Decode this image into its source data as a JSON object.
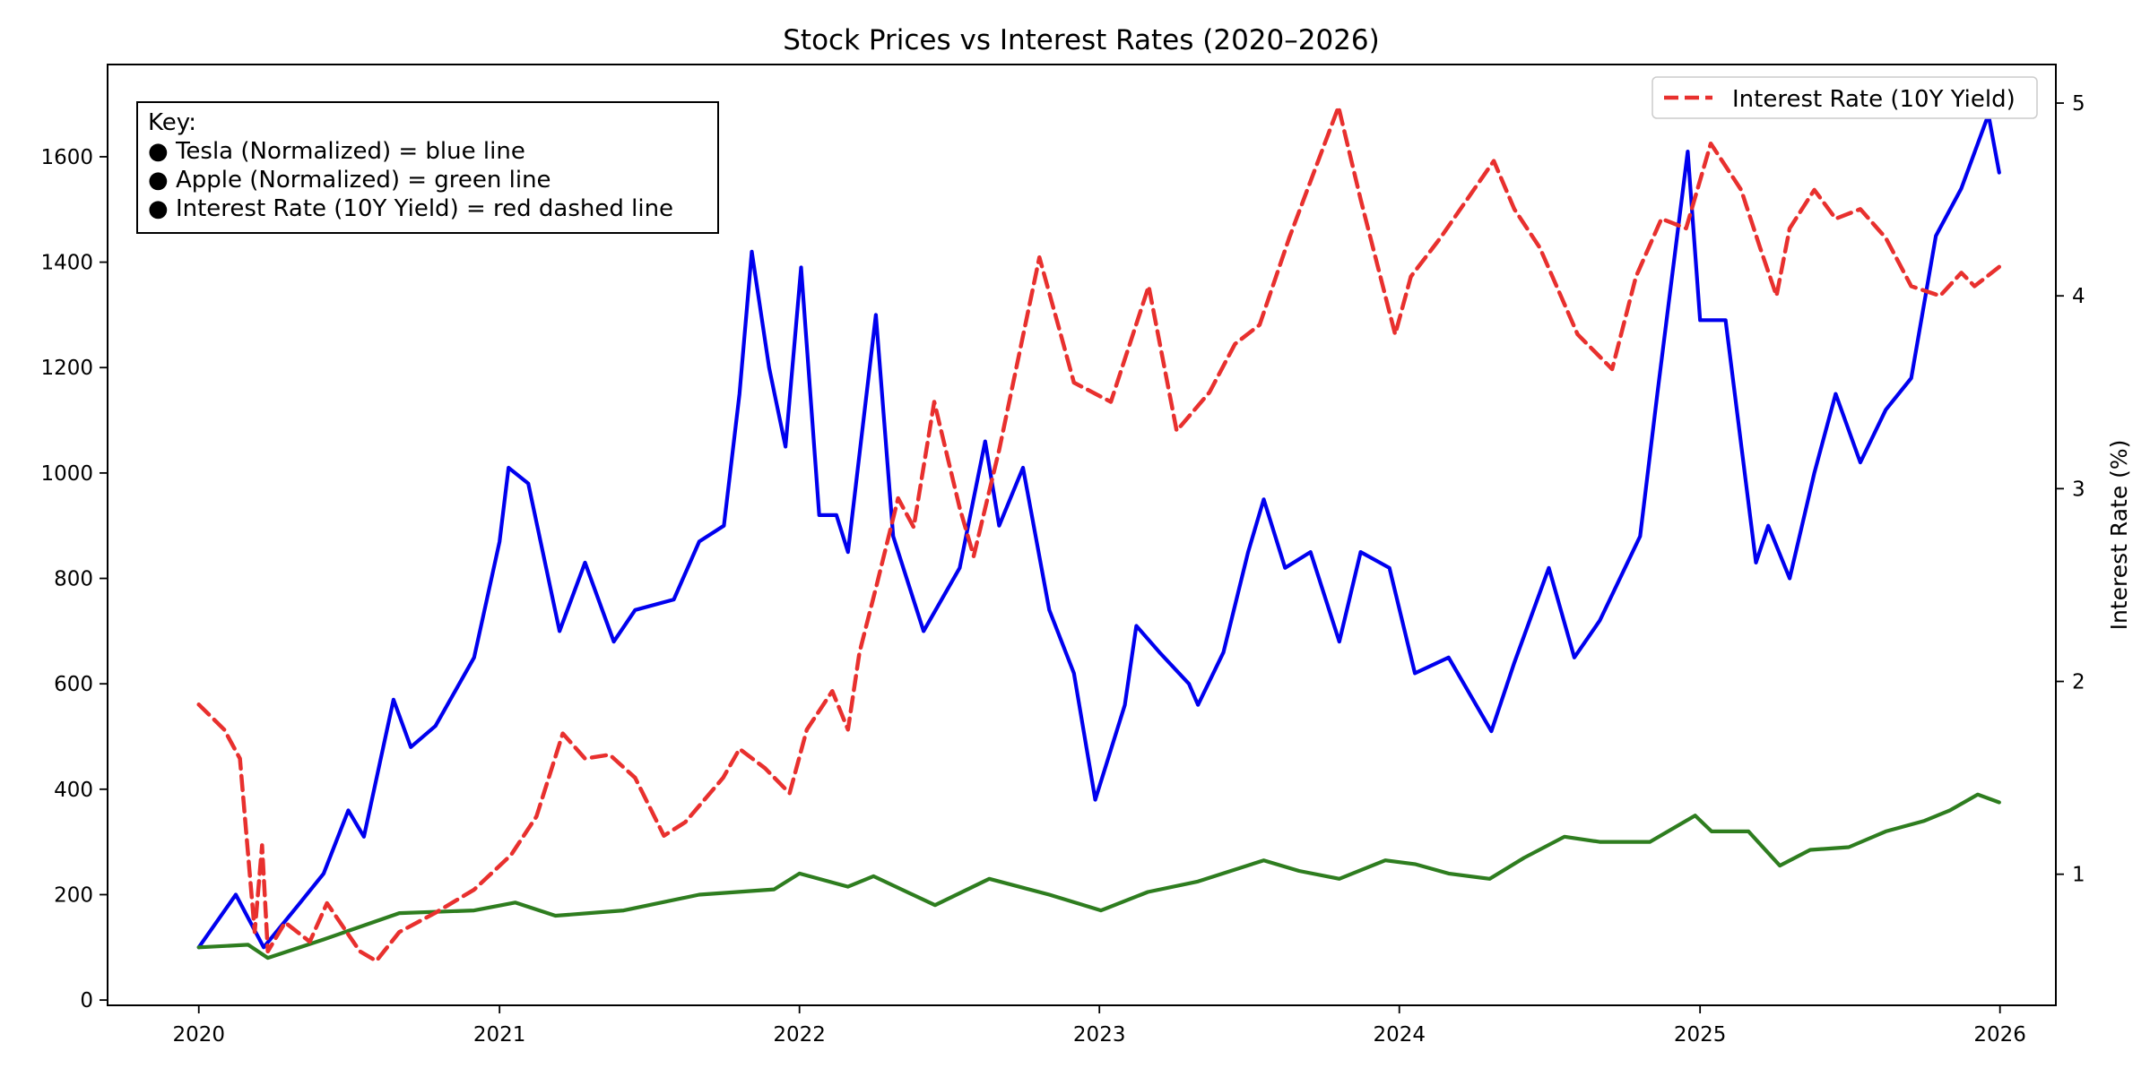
{
  "chart_data": {
    "type": "line",
    "title": "Stock Prices vs Interest Rates (2020–2026)",
    "xlabel": "",
    "ylabel_left": "",
    "ylabel_right": "Interest Rate (%)",
    "x_ticks": [
      "2020",
      "2021",
      "2022",
      "2023",
      "2024",
      "2025",
      "2026"
    ],
    "xlim": [
      "2019-09-12",
      "2026-03-10"
    ],
    "y_left_ticks": [
      0,
      200,
      400,
      600,
      800,
      1000,
      1200,
      1400,
      1600
    ],
    "ylim_left": [
      -10,
      1775
    ],
    "y_right_ticks": [
      1,
      2,
      3,
      4,
      5
    ],
    "ylim_right": [
      0.32,
      5.2
    ],
    "grid": false,
    "key_box": {
      "position": "top-left",
      "lines": [
        "Key:",
        "● Tesla (Normalized) = blue line",
        "● Apple (Normalized) = green line",
        "● Interest Rate (10Y Yield) = red dashed line"
      ]
    },
    "legend": {
      "position": "top-right",
      "entries": [
        {
          "label": "Interest Rate (10Y Yield)",
          "style": "red dashed"
        }
      ]
    },
    "series": [
      {
        "label": "Tesla (Normalized)",
        "axis": "left",
        "color": "#0000ee",
        "style": "solid",
        "points": [
          [
            "2020-01-01",
            100
          ],
          [
            "2020-02-15",
            200
          ],
          [
            "2020-03-20",
            100
          ],
          [
            "2020-05-01",
            180
          ],
          [
            "2020-06-01",
            240
          ],
          [
            "2020-07-01",
            360
          ],
          [
            "2020-07-20",
            310
          ],
          [
            "2020-08-25",
            570
          ],
          [
            "2020-09-15",
            480
          ],
          [
            "2020-10-15",
            520
          ],
          [
            "2020-12-01",
            650
          ],
          [
            "2021-01-01",
            870
          ],
          [
            "2021-01-12",
            1010
          ],
          [
            "2021-02-05",
            980
          ],
          [
            "2021-03-15",
            700
          ],
          [
            "2021-04-15",
            830
          ],
          [
            "2021-05-20",
            680
          ],
          [
            "2021-06-15",
            740
          ],
          [
            "2021-08-01",
            760
          ],
          [
            "2021-09-01",
            870
          ],
          [
            "2021-10-01",
            900
          ],
          [
            "2021-10-20",
            1150
          ],
          [
            "2021-11-04",
            1420
          ],
          [
            "2021-11-25",
            1200
          ],
          [
            "2021-12-15",
            1050
          ],
          [
            "2022-01-03",
            1390
          ],
          [
            "2022-01-25",
            920
          ],
          [
            "2022-02-15",
            920
          ],
          [
            "2022-03-01",
            850
          ],
          [
            "2022-04-04",
            1300
          ],
          [
            "2022-04-25",
            880
          ],
          [
            "2022-06-01",
            700
          ],
          [
            "2022-07-15",
            820
          ],
          [
            "2022-08-15",
            1060
          ],
          [
            "2022-09-01",
            900
          ],
          [
            "2022-09-30",
            1010
          ],
          [
            "2022-11-01",
            740
          ],
          [
            "2022-12-01",
            620
          ],
          [
            "2022-12-27",
            380
          ],
          [
            "2023-02-01",
            560
          ],
          [
            "2023-02-15",
            710
          ],
          [
            "2023-03-15",
            660
          ],
          [
            "2023-04-20",
            600
          ],
          [
            "2023-05-01",
            560
          ],
          [
            "2023-06-01",
            660
          ],
          [
            "2023-07-01",
            850
          ],
          [
            "2023-07-20",
            950
          ],
          [
            "2023-08-15",
            820
          ],
          [
            "2023-09-15",
            850
          ],
          [
            "2023-10-20",
            680
          ],
          [
            "2023-11-15",
            850
          ],
          [
            "2023-12-20",
            820
          ],
          [
            "2024-01-20",
            620
          ],
          [
            "2024-03-01",
            650
          ],
          [
            "2024-04-22",
            510
          ],
          [
            "2024-05-20",
            640
          ],
          [
            "2024-07-01",
            820
          ],
          [
            "2024-08-01",
            650
          ],
          [
            "2024-09-01",
            720
          ],
          [
            "2024-10-20",
            880
          ],
          [
            "2024-11-10",
            1150
          ],
          [
            "2024-12-17",
            1610
          ],
          [
            "2025-01-01",
            1290
          ],
          [
            "2025-02-01",
            1290
          ],
          [
            "2025-03-10",
            830
          ],
          [
            "2025-03-25",
            900
          ],
          [
            "2025-04-20",
            800
          ],
          [
            "2025-05-20",
            1000
          ],
          [
            "2025-06-15",
            1150
          ],
          [
            "2025-07-15",
            1020
          ],
          [
            "2025-08-15",
            1120
          ],
          [
            "2025-09-15",
            1180
          ],
          [
            "2025-10-15",
            1450
          ],
          [
            "2025-11-15",
            1540
          ],
          [
            "2025-12-18",
            1680
          ],
          [
            "2025-12-31",
            1570
          ]
        ]
      },
      {
        "label": "Apple (Normalized)",
        "axis": "left",
        "color": "#2e7d1f",
        "style": "solid",
        "points": [
          [
            "2020-01-01",
            100
          ],
          [
            "2020-03-01",
            105
          ],
          [
            "2020-03-25",
            80
          ],
          [
            "2020-06-01",
            115
          ],
          [
            "2020-09-01",
            165
          ],
          [
            "2020-12-01",
            170
          ],
          [
            "2021-01-20",
            185
          ],
          [
            "2021-03-10",
            160
          ],
          [
            "2021-06-01",
            170
          ],
          [
            "2021-09-01",
            200
          ],
          [
            "2021-12-01",
            210
          ],
          [
            "2022-01-01",
            240
          ],
          [
            "2022-03-01",
            215
          ],
          [
            "2022-04-01",
            235
          ],
          [
            "2022-06-15",
            180
          ],
          [
            "2022-08-20",
            230
          ],
          [
            "2022-11-01",
            200
          ],
          [
            "2023-01-03",
            170
          ],
          [
            "2023-03-01",
            205
          ],
          [
            "2023-05-01",
            225
          ],
          [
            "2023-07-20",
            265
          ],
          [
            "2023-09-01",
            245
          ],
          [
            "2023-10-20",
            230
          ],
          [
            "2023-12-15",
            265
          ],
          [
            "2024-01-20",
            258
          ],
          [
            "2024-03-01",
            240
          ],
          [
            "2024-04-20",
            230
          ],
          [
            "2024-06-01",
            270
          ],
          [
            "2024-07-20",
            310
          ],
          [
            "2024-09-01",
            300
          ],
          [
            "2024-11-01",
            300
          ],
          [
            "2024-12-26",
            350
          ],
          [
            "2025-01-15",
            320
          ],
          [
            "2025-03-01",
            320
          ],
          [
            "2025-04-08",
            255
          ],
          [
            "2025-05-15",
            285
          ],
          [
            "2025-07-01",
            290
          ],
          [
            "2025-08-15",
            320
          ],
          [
            "2025-10-01",
            340
          ],
          [
            "2025-11-01",
            360
          ],
          [
            "2025-12-05",
            390
          ],
          [
            "2025-12-31",
            375
          ]
        ]
      },
      {
        "label": "Interest Rate (10Y Yield)",
        "axis": "right",
        "color": "#e8302e",
        "style": "dashed",
        "points": [
          [
            "2020-01-01",
            1.88
          ],
          [
            "2020-02-01",
            1.75
          ],
          [
            "2020-02-20",
            1.6
          ],
          [
            "2020-03-09",
            0.7
          ],
          [
            "2020-03-18",
            1.15
          ],
          [
            "2020-03-25",
            0.6
          ],
          [
            "2020-04-15",
            0.75
          ],
          [
            "2020-05-15",
            0.65
          ],
          [
            "2020-06-05",
            0.85
          ],
          [
            "2020-07-15",
            0.6
          ],
          [
            "2020-08-04",
            0.55
          ],
          [
            "2020-09-01",
            0.7
          ],
          [
            "2020-10-15",
            0.8
          ],
          [
            "2020-12-01",
            0.92
          ],
          [
            "2021-01-15",
            1.1
          ],
          [
            "2021-02-15",
            1.3
          ],
          [
            "2021-03-19",
            1.73
          ],
          [
            "2021-04-15",
            1.6
          ],
          [
            "2021-05-15",
            1.62
          ],
          [
            "2021-06-15",
            1.5
          ],
          [
            "2021-07-20",
            1.2
          ],
          [
            "2021-08-15",
            1.27
          ],
          [
            "2021-09-30",
            1.5
          ],
          [
            "2021-10-20",
            1.65
          ],
          [
            "2021-11-20",
            1.55
          ],
          [
            "2021-12-20",
            1.42
          ],
          [
            "2022-01-10",
            1.75
          ],
          [
            "2022-02-10",
            1.95
          ],
          [
            "2022-03-01",
            1.75
          ],
          [
            "2022-03-15",
            2.15
          ],
          [
            "2022-04-05",
            2.5
          ],
          [
            "2022-05-01",
            2.95
          ],
          [
            "2022-05-20",
            2.8
          ],
          [
            "2022-06-14",
            3.45
          ],
          [
            "2022-07-15",
            2.9
          ],
          [
            "2022-08-01",
            2.65
          ],
          [
            "2022-09-01",
            3.2
          ],
          [
            "2022-10-20",
            4.2
          ],
          [
            "2022-11-15",
            3.8
          ],
          [
            "2022-12-01",
            3.55
          ],
          [
            "2023-01-15",
            3.45
          ],
          [
            "2023-03-02",
            4.05
          ],
          [
            "2023-04-05",
            3.3
          ],
          [
            "2023-05-15",
            3.5
          ],
          [
            "2023-06-15",
            3.75
          ],
          [
            "2023-07-15",
            3.85
          ],
          [
            "2023-08-20",
            4.3
          ],
          [
            "2023-10-19",
            4.98
          ],
          [
            "2023-11-15",
            4.5
          ],
          [
            "2023-12-27",
            3.8
          ],
          [
            "2024-01-15",
            4.1
          ],
          [
            "2024-02-20",
            4.3
          ],
          [
            "2024-04-25",
            4.7
          ],
          [
            "2024-05-20",
            4.45
          ],
          [
            "2024-06-20",
            4.25
          ],
          [
            "2024-08-05",
            3.8
          ],
          [
            "2024-09-16",
            3.62
          ],
          [
            "2024-10-15",
            4.1
          ],
          [
            "2024-11-15",
            4.4
          ],
          [
            "2024-12-15",
            4.35
          ],
          [
            "2025-01-14",
            4.79
          ],
          [
            "2025-02-20",
            4.55
          ],
          [
            "2025-03-15",
            4.25
          ],
          [
            "2025-04-04",
            4.0
          ],
          [
            "2025-04-20",
            4.35
          ],
          [
            "2025-05-20",
            4.55
          ],
          [
            "2025-06-15",
            4.4
          ],
          [
            "2025-07-15",
            4.45
          ],
          [
            "2025-08-15",
            4.3
          ],
          [
            "2025-09-15",
            4.05
          ],
          [
            "2025-10-20",
            4.0
          ],
          [
            "2025-11-15",
            4.12
          ],
          [
            "2025-12-01",
            4.05
          ],
          [
            "2025-12-31",
            4.15
          ]
        ]
      }
    ]
  }
}
